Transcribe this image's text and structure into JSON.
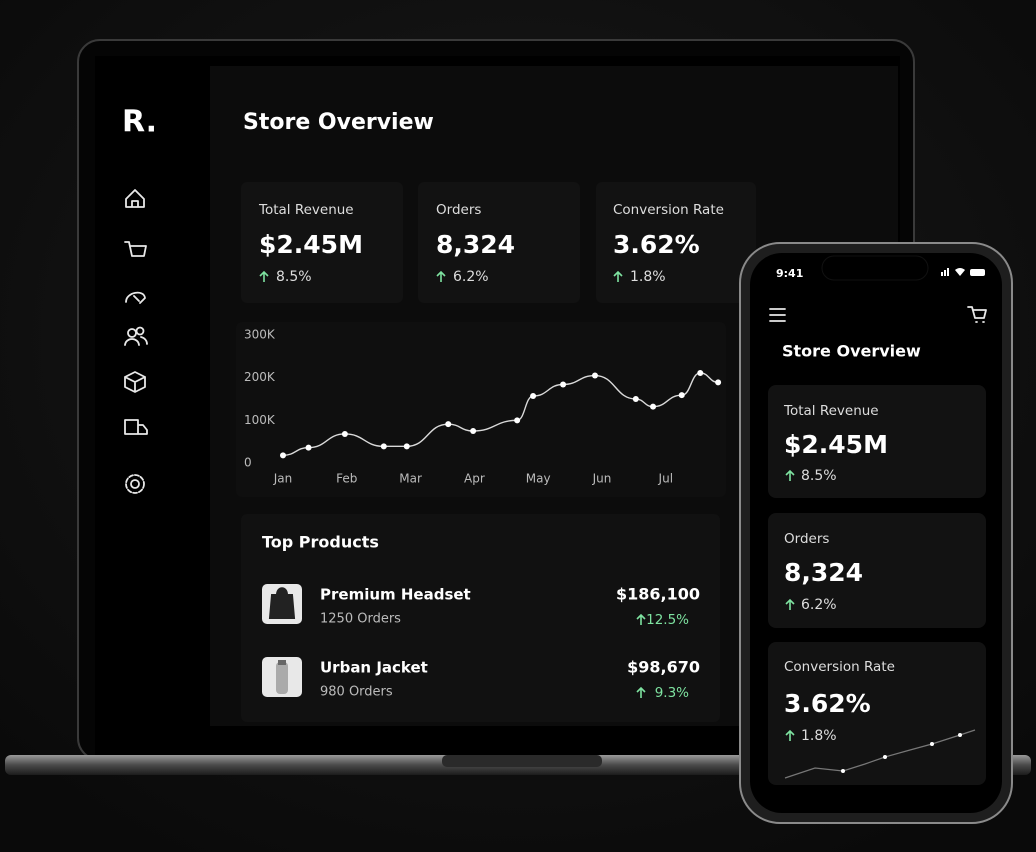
{
  "brand": "R.",
  "page_title": "Store Overview",
  "stats": [
    {
      "label": "Total Revenue",
      "value": "$2.45M",
      "change": "8.5%"
    },
    {
      "label": "Orders",
      "value": "8,324",
      "change": "6.2%"
    },
    {
      "label": "Conversion Rate",
      "value": "3.62%",
      "change": "1.8%"
    }
  ],
  "chart_data": {
    "type": "line",
    "x": [
      0,
      0.4,
      0.97,
      1.58,
      1.94,
      2.59,
      2.98,
      3.67,
      3.92,
      4.39,
      4.89,
      5.53,
      5.8,
      6.25,
      6.54,
      6.82
    ],
    "values": [
      18000,
      36000,
      68000,
      39000,
      39000,
      91000,
      75000,
      100000,
      157000,
      184000,
      205000,
      150000,
      132000,
      159000,
      211000,
      189000
    ],
    "color": "#d9d9d9",
    "xlim": [
      -0.1,
      6.9
    ],
    "xticks": [
      {
        "value": 0,
        "label": "Jan"
      },
      {
        "value": 1,
        "label": "Feb"
      },
      {
        "value": 2,
        "label": "Mar"
      },
      {
        "value": 3,
        "label": "Apr"
      },
      {
        "value": 4,
        "label": "May"
      },
      {
        "value": 5,
        "label": "Jun"
      },
      {
        "value": 6,
        "label": "Jul"
      }
    ],
    "ylim": [
      0,
      300000
    ],
    "yticks": [
      {
        "value": 0,
        "label": "0"
      },
      {
        "value": 100000,
        "label": "100K"
      },
      {
        "value": 200000,
        "label": "200K"
      },
      {
        "value": 300000,
        "label": "300K"
      }
    ]
  },
  "top_products": {
    "title": "Top Products",
    "items": [
      {
        "name": "Premium Headset",
        "orders": "1250 Orders",
        "revenue": "$186,100",
        "change": "12.5%"
      },
      {
        "name": "Urban Jacket",
        "orders": "980 Orders",
        "revenue": "$98,670",
        "change": "9.3%"
      }
    ]
  },
  "phone": {
    "time": "9:41",
    "title": "Store Overview"
  }
}
